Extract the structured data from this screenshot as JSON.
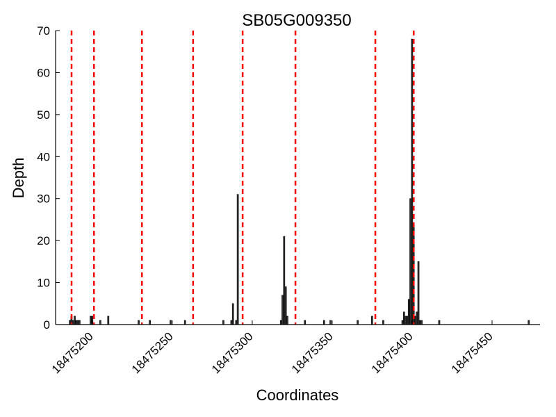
{
  "chart_data": {
    "type": "bar",
    "title": "SB05G009350",
    "xlabel": "Coordinates",
    "ylabel": "Depth",
    "xlim": [
      18475177,
      18475480
    ],
    "ylim": [
      0,
      70
    ],
    "yticks": [
      0,
      10,
      20,
      30,
      40,
      50,
      60,
      70
    ],
    "xticks": [
      18475200,
      18475250,
      18475300,
      18475350,
      18475400,
      18475450
    ],
    "grid": false,
    "bar_color": "#333333",
    "marker_line_color": "#ff0000",
    "bars": {
      "x": [
        18475186,
        18475187,
        18475188,
        18475189,
        18475190,
        18475191,
        18475192,
        18475199,
        18475200,
        18475205,
        18475210,
        18475229,
        18475236,
        18475249,
        18475258,
        18475282,
        18475287,
        18475288,
        18475290,
        18475291,
        18475318,
        18475319,
        18475320,
        18475321,
        18475322,
        18475333,
        18475345,
        18475349,
        18475366,
        18475375,
        18475382,
        18475394,
        18475395,
        18475396,
        18475397,
        18475398,
        18475399,
        18475400,
        18475401,
        18475402,
        18475403,
        18475404,
        18475405,
        18475406,
        18475417,
        18475473
      ],
      "values": [
        1,
        2,
        1,
        2,
        1,
        1,
        1,
        2,
        2,
        1,
        2,
        1,
        1,
        1,
        1,
        1,
        1,
        5,
        1,
        31,
        1,
        7,
        21,
        9,
        2,
        1,
        1,
        1,
        1,
        2,
        1,
        1,
        3,
        2,
        2,
        6,
        30,
        68,
        24,
        2,
        3,
        15,
        1,
        1,
        1,
        1
      ]
    },
    "vertical_lines": [
      18475187,
      18475201,
      18475231,
      18475263,
      18475294,
      18475327,
      18475377,
      18475401
    ]
  }
}
